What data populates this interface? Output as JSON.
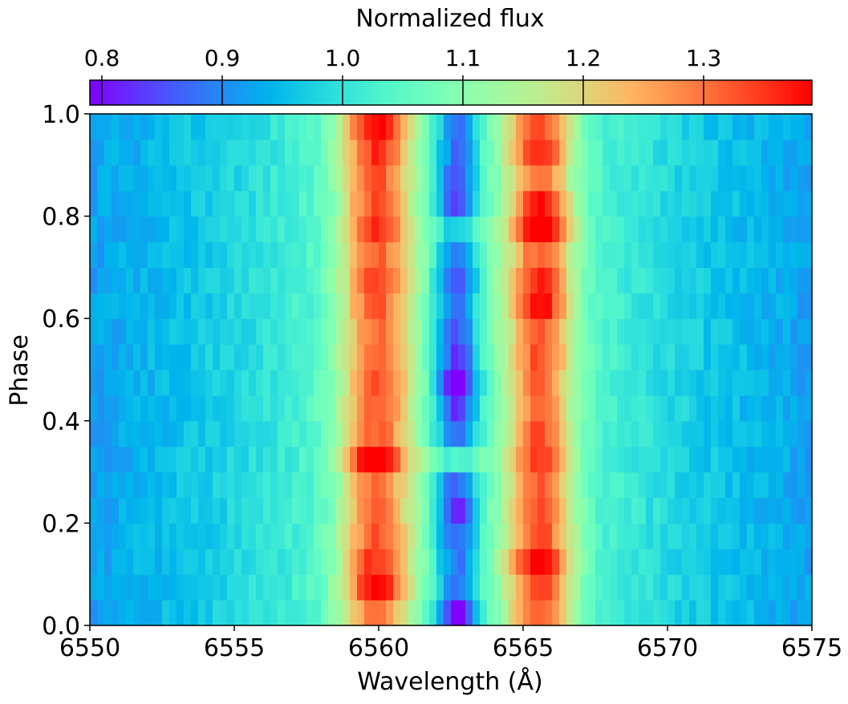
{
  "chart_data": {
    "type": "heatmap",
    "title": "",
    "xlabel": "Wavelength (Å)",
    "ylabel": "Phase",
    "xlim": [
      6550,
      6575
    ],
    "ylim": [
      0.0,
      1.0
    ],
    "xticks": [
      6550,
      6555,
      6560,
      6565,
      6570,
      6575
    ],
    "xtick_labels": [
      "6550",
      "6555",
      "6560",
      "6565",
      "6570",
      "6575"
    ],
    "yticks": [
      0.0,
      0.2,
      0.4,
      0.6,
      0.8,
      1.0
    ],
    "ytick_labels": [
      "0.0",
      "0.2",
      "0.4",
      "0.6",
      "0.8",
      "1.0"
    ],
    "colormap": "rainbow",
    "colorbar": {
      "label": "Normalized flux",
      "position": "top",
      "vmin": 0.79,
      "vmax": 1.39,
      "ticks": [
        0.8,
        0.9,
        1.0,
        1.1,
        1.2,
        1.3
      ],
      "tick_labels": [
        "0.8",
        "0.9",
        "1.0",
        "1.1",
        "1.2",
        "1.3"
      ]
    },
    "n_wavelength_bins": 100,
    "phase_bins": [
      0.0,
      0.05,
      0.1,
      0.15,
      0.2,
      0.25,
      0.3,
      0.35,
      0.4,
      0.45,
      0.5,
      0.55,
      0.6,
      0.65,
      0.7,
      0.75,
      0.8,
      0.85,
      0.9,
      0.95
    ],
    "profile_components": {
      "continuum": 0.99,
      "blue_peak": {
        "center": 6559.9,
        "width": 0.85
      },
      "red_peak": {
        "center": 6565.6,
        "width": 0.8
      },
      "absorption": {
        "center": 6562.7,
        "width": 0.55
      }
    },
    "rows": [
      {
        "phase": 0.0,
        "blue": 0.23,
        "red": 0.26,
        "absorption": 0.29
      },
      {
        "phase": 0.05,
        "blue": 0.32,
        "red": 0.28,
        "absorption": 0.19
      },
      {
        "phase": 0.1,
        "blue": 0.29,
        "red": 0.34,
        "absorption": 0.2
      },
      {
        "phase": 0.15,
        "blue": 0.26,
        "red": 0.28,
        "absorption": 0.22
      },
      {
        "phase": 0.2,
        "blue": 0.24,
        "red": 0.27,
        "absorption": 0.26
      },
      {
        "phase": 0.25,
        "blue": 0.24,
        "red": 0.26,
        "absorption": 0.21
      },
      {
        "phase": 0.3,
        "blue": 0.36,
        "red": 0.28,
        "absorption": 0.06
      },
      {
        "phase": 0.35,
        "blue": 0.25,
        "red": 0.27,
        "absorption": 0.21
      },
      {
        "phase": 0.4,
        "blue": 0.26,
        "red": 0.25,
        "absorption": 0.25
      },
      {
        "phase": 0.45,
        "blue": 0.27,
        "red": 0.26,
        "absorption": 0.31
      },
      {
        "phase": 0.5,
        "blue": 0.25,
        "red": 0.27,
        "absorption": 0.25
      },
      {
        "phase": 0.55,
        "blue": 0.24,
        "red": 0.26,
        "absorption": 0.22
      },
      {
        "phase": 0.6,
        "blue": 0.26,
        "red": 0.33,
        "absorption": 0.19
      },
      {
        "phase": 0.65,
        "blue": 0.27,
        "red": 0.3,
        "absorption": 0.23
      },
      {
        "phase": 0.7,
        "blue": 0.25,
        "red": 0.26,
        "absorption": 0.18
      },
      {
        "phase": 0.75,
        "blue": 0.3,
        "red": 0.38,
        "absorption": 0.12
      },
      {
        "phase": 0.8,
        "blue": 0.27,
        "red": 0.31,
        "absorption": 0.24
      },
      {
        "phase": 0.85,
        "blue": 0.26,
        "red": 0.24,
        "absorption": 0.22
      },
      {
        "phase": 0.9,
        "blue": 0.29,
        "red": 0.3,
        "absorption": 0.2
      },
      {
        "phase": 0.95,
        "blue": 0.32,
        "red": 0.28,
        "absorption": 0.2
      }
    ]
  }
}
